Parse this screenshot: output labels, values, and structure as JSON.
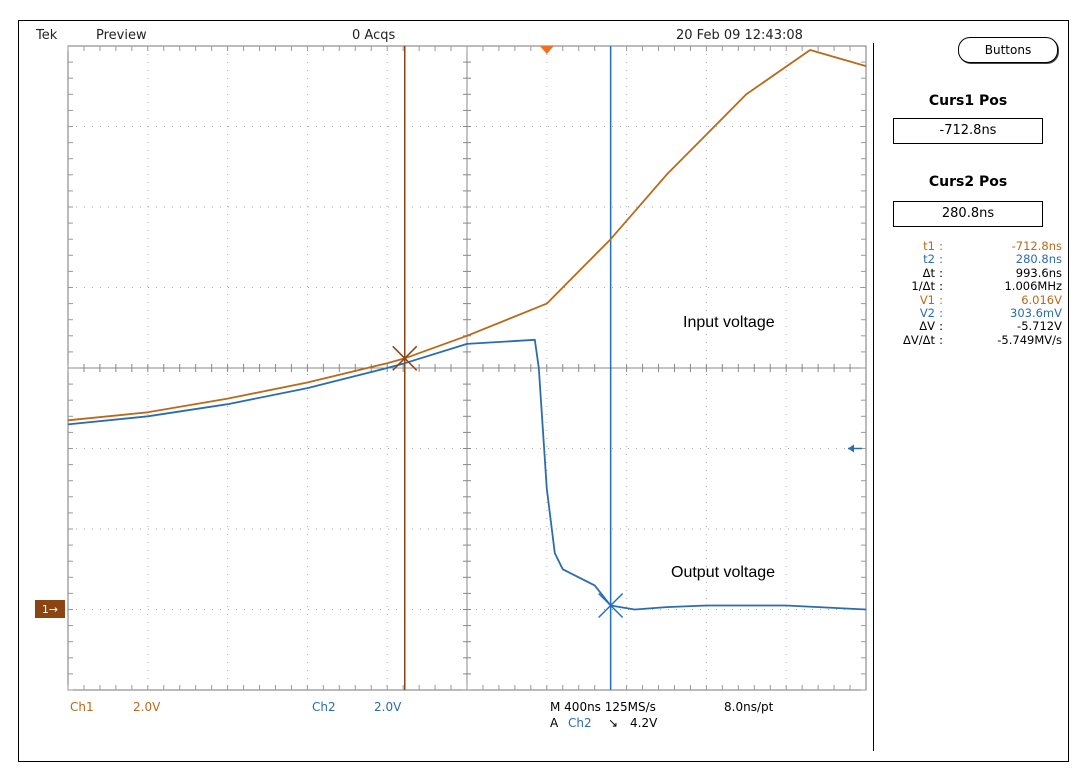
{
  "topbar": {
    "brand": "Tek",
    "mode": "Preview",
    "acqs": "0 Acqs",
    "timestamp": "20 Feb 09 12:43:08"
  },
  "buttons_label": "Buttons",
  "cursor_panel": {
    "curs1_title": "Curs1 Pos",
    "curs1_value": "-712.8ns",
    "curs2_title": "Curs2 Pos",
    "curs2_value": "280.8ns"
  },
  "measurements": [
    {
      "key": "t1",
      "value": "-712.8ns",
      "color": "#b86a1a"
    },
    {
      "key": "t2",
      "value": "280.8ns",
      "color": "#2b6cb0"
    },
    {
      "key": "Δt",
      "value": "993.6ns",
      "color": "#000000"
    },
    {
      "key": "1/Δt",
      "value": "1.006MHz",
      "color": "#000000"
    },
    {
      "key": "V1",
      "value": "6.016V",
      "color": "#b86a1a"
    },
    {
      "key": "V2",
      "value": "303.6mV",
      "color": "#2b6cb0"
    },
    {
      "key": "ΔV",
      "value": "-5.712V",
      "color": "#000000"
    },
    {
      "key": "ΔV/Δt",
      "value": "-5.749MV/s",
      "color": "#000000"
    }
  ],
  "bottom": {
    "ch1_label": "Ch1",
    "ch1_scale": "2.0V",
    "ch2_label": "Ch2",
    "ch2_scale": "2.0V",
    "timebase": "M 400ns 125MS/s",
    "sample_interval": "8.0ns/pt",
    "trigger_prefix": "A",
    "trigger_source": "Ch2",
    "trigger_slope_symbol": "↘",
    "trigger_level": "4.2V"
  },
  "annotations": {
    "input": "Input voltage",
    "output": "Output voltage"
  },
  "ch1_marker": "1→",
  "colors": {
    "ch1": "#b86a1a",
    "ch2": "#2b6cb0",
    "grid": "#aaaaaa",
    "cursor1": "#8b4513",
    "cursor2": "#1f6fc4",
    "marker_bg": "#8b4513"
  },
  "chart_data": {
    "type": "line",
    "x_unit": "div",
    "y_unit": "div",
    "grid": true,
    "xlim": [
      -5,
      5
    ],
    "ylim": [
      -4,
      4
    ],
    "series": [
      {
        "name": "Ch1",
        "x": [
          -5.0,
          -4.0,
          -3.0,
          -2.0,
          -1.0,
          -0.78,
          0.0,
          1.0,
          1.8,
          2.5,
          3.5,
          4.3,
          5.0
        ],
        "y": [
          -0.65,
          -0.55,
          -0.38,
          -0.18,
          0.06,
          0.12,
          0.4,
          0.8,
          1.6,
          2.4,
          3.4,
          3.95,
          3.75
        ]
      },
      {
        "name": "Ch2",
        "x": [
          -5.0,
          -4.0,
          -3.0,
          -2.0,
          -1.0,
          -0.78,
          0.0,
          0.85,
          0.9,
          1.0,
          1.1,
          1.2,
          1.6,
          1.8,
          2.1,
          2.5,
          3.0,
          4.0,
          5.0
        ],
        "y": [
          -0.7,
          -0.6,
          -0.45,
          -0.25,
          0.0,
          0.06,
          0.3,
          0.35,
          0.0,
          -1.5,
          -2.3,
          -2.5,
          -2.7,
          -2.95,
          -3.0,
          -2.97,
          -2.95,
          -2.95,
          -3.0
        ]
      }
    ],
    "cursors": {
      "cursor1_x_div": -0.78,
      "cursor2_x_div": 1.8
    }
  }
}
